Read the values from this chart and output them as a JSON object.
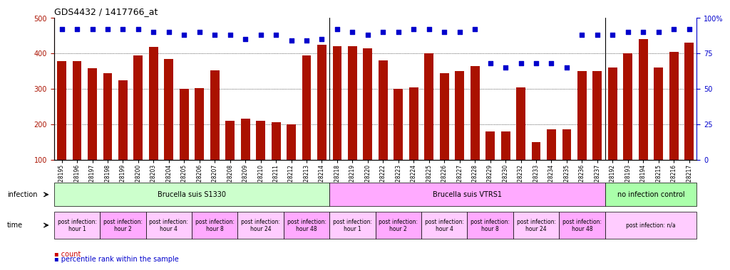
{
  "title": "GDS4432 / 1417766_at",
  "bar_color": "#aa1100",
  "dot_color": "#0000cc",
  "categories": [
    "GSM528195",
    "GSM528196",
    "GSM528197",
    "GSM528198",
    "GSM528199",
    "GSM528200",
    "GSM528203",
    "GSM528204",
    "GSM528205",
    "GSM528206",
    "GSM528207",
    "GSM528208",
    "GSM528209",
    "GSM528210",
    "GSM528211",
    "GSM528212",
    "GSM528213",
    "GSM528214",
    "GSM528218",
    "GSM528219",
    "GSM528220",
    "GSM528222",
    "GSM528223",
    "GSM528224",
    "GSM528225",
    "GSM528226",
    "GSM528227",
    "GSM528228",
    "GSM528229",
    "GSM528230",
    "GSM528232",
    "GSM528233",
    "GSM528234",
    "GSM528235",
    "GSM528236",
    "GSM528237",
    "GSM528192",
    "GSM528193",
    "GSM528194",
    "GSM528215",
    "GSM528216",
    "GSM528217"
  ],
  "bar_values": [
    378,
    378,
    358,
    345,
    325,
    395,
    418,
    385,
    300,
    303,
    352,
    210,
    215,
    210,
    205,
    200,
    395,
    425,
    420,
    420,
    415,
    380,
    300,
    305,
    400,
    345,
    350,
    365,
    180,
    180,
    305,
    150,
    185,
    185,
    350,
    350,
    360,
    400,
    440,
    360,
    405,
    430
  ],
  "dot_values_pct": [
    92,
    92,
    92,
    92,
    92,
    92,
    90,
    90,
    88,
    90,
    88,
    88,
    85,
    88,
    88,
    84,
    84,
    85,
    92,
    90,
    88,
    90,
    90,
    92,
    92,
    90,
    90,
    92,
    68,
    65,
    68,
    68,
    68,
    65,
    88,
    88,
    88,
    90,
    90,
    90,
    92,
    92
  ],
  "ylim_left": [
    100,
    500
  ],
  "ylim_right": [
    0,
    100
  ],
  "yticks_left": [
    100,
    200,
    300,
    400,
    500
  ],
  "yticks_right": [
    0,
    25,
    50,
    75,
    100
  ],
  "infection_groups": [
    {
      "label": "Brucella suis S1330",
      "start": 0,
      "end": 18,
      "color": "#ccffcc"
    },
    {
      "label": "Brucella suis VTRS1",
      "start": 18,
      "end": 36,
      "color": "#ffaaff"
    },
    {
      "label": "no infection control",
      "start": 36,
      "end": 42,
      "color": "#aaffaa"
    }
  ],
  "time_groups": [
    {
      "label": "post infection:\nhour 1",
      "start": 0,
      "end": 3,
      "color": "#ffccff"
    },
    {
      "label": "post infection:\nhour 2",
      "start": 3,
      "end": 6,
      "color": "#ffaaff"
    },
    {
      "label": "post infection:\nhour 4",
      "start": 6,
      "end": 9,
      "color": "#ffccff"
    },
    {
      "label": "post infection:\nhour 8",
      "start": 9,
      "end": 12,
      "color": "#ffaaff"
    },
    {
      "label": "post infection:\nhour 24",
      "start": 12,
      "end": 15,
      "color": "#ffccff"
    },
    {
      "label": "post infection:\nhour 48",
      "start": 15,
      "end": 18,
      "color": "#ffaaff"
    },
    {
      "label": "post infection:\nhour 1",
      "start": 18,
      "end": 21,
      "color": "#ffccff"
    },
    {
      "label": "post infection:\nhour 2",
      "start": 21,
      "end": 24,
      "color": "#ffaaff"
    },
    {
      "label": "post infection:\nhour 4",
      "start": 24,
      "end": 27,
      "color": "#ffccff"
    },
    {
      "label": "post infection:\nhour 8",
      "start": 27,
      "end": 30,
      "color": "#ffaaff"
    },
    {
      "label": "post infection:\nhour 24",
      "start": 30,
      "end": 33,
      "color": "#ffccff"
    },
    {
      "label": "post infection:\nhour 48",
      "start": 33,
      "end": 36,
      "color": "#ffaaff"
    },
    {
      "label": "post infection: n/a",
      "start": 36,
      "end": 42,
      "color": "#ffccff"
    }
  ],
  "legend_count_color": "#cc0000",
  "legend_dot_color": "#0000cc",
  "bg_color": "#ffffff"
}
